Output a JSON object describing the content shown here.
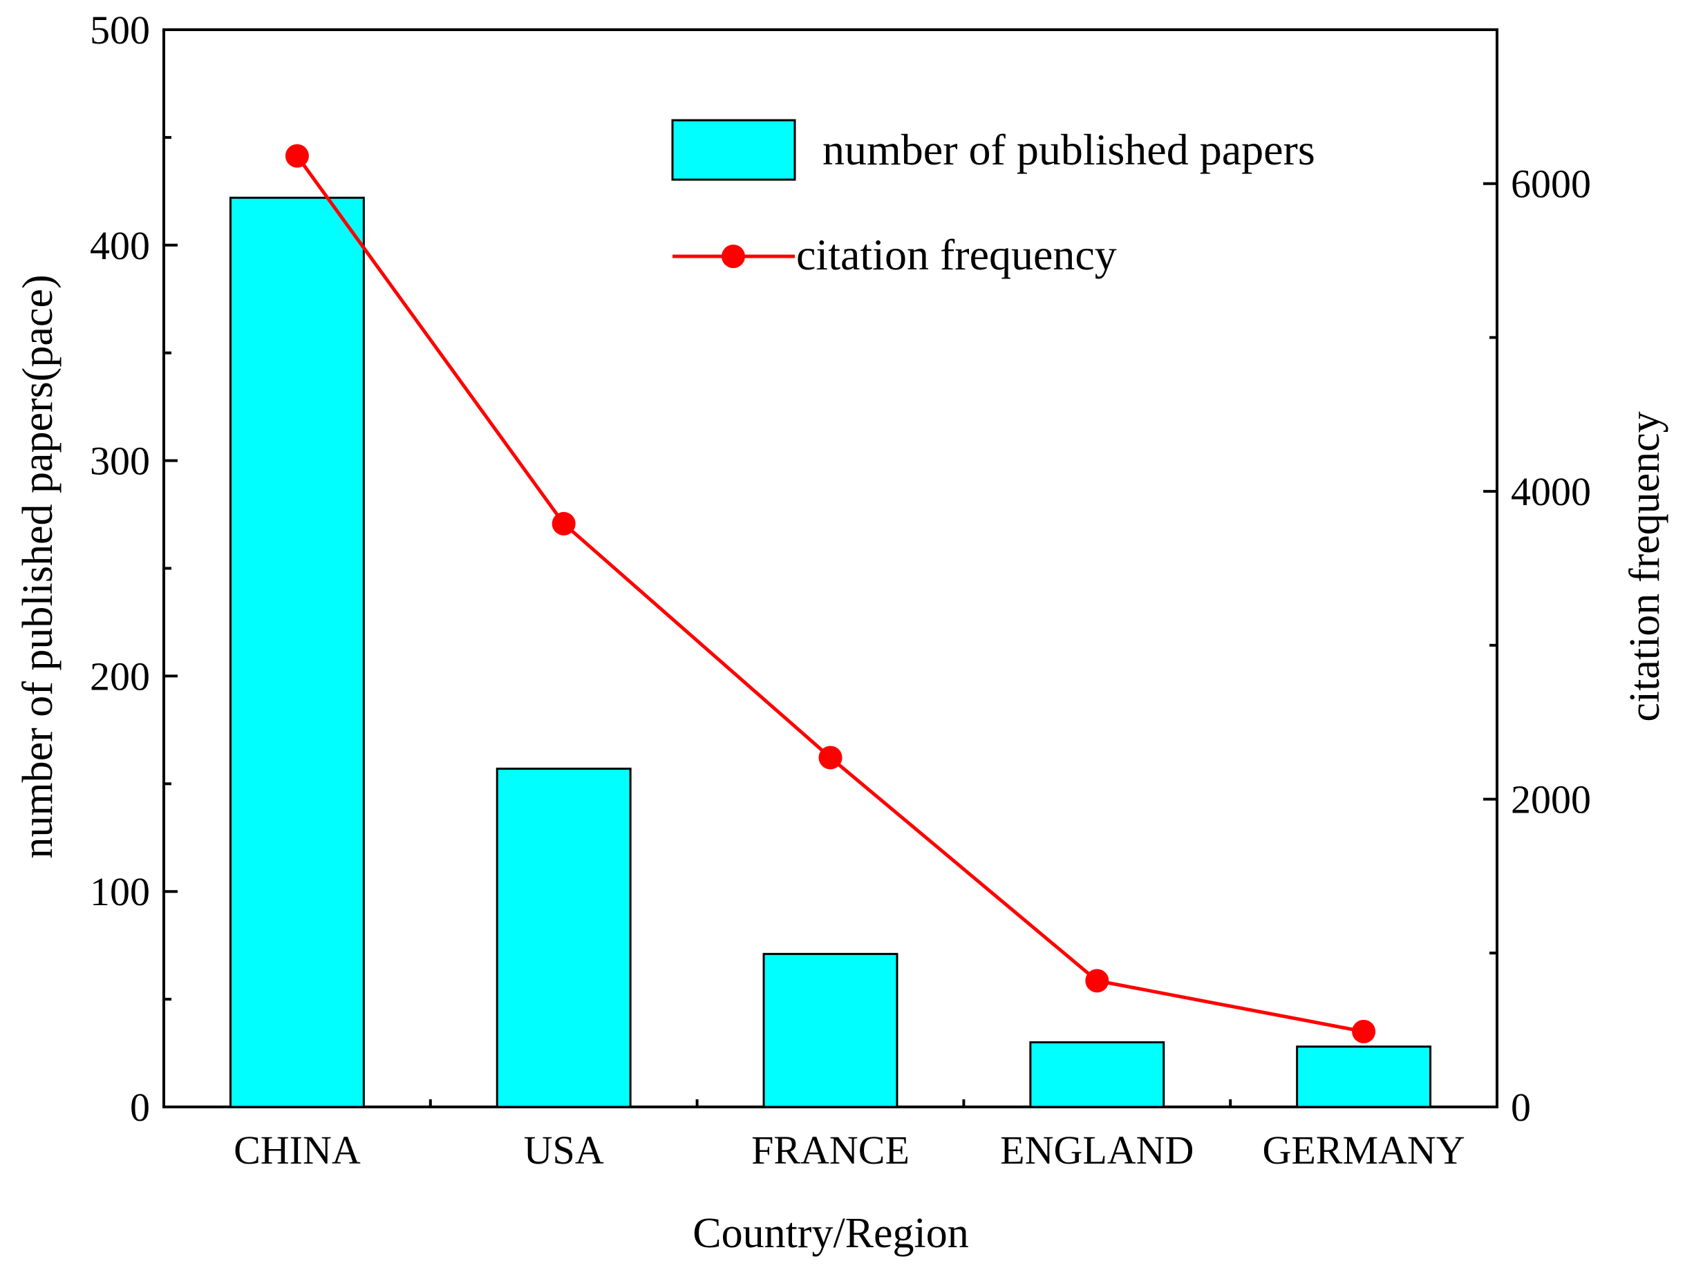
{
  "chart_data": {
    "type": "bar",
    "categories": [
      "CHINA",
      "USA",
      "FRANCE",
      "ENGLAND",
      "GERMANY"
    ],
    "series": [
      {
        "name": "number of published papers",
        "type": "bar",
        "axis": "left",
        "color": "#00FFFF",
        "values": [
          422,
          157,
          71,
          30,
          28
        ]
      },
      {
        "name": "citation frequency",
        "type": "line",
        "axis": "right",
        "color": "#FF0000",
        "values": [
          6180,
          3790,
          2270,
          820,
          490
        ]
      }
    ],
    "xlabel": "Country/Region",
    "ylabel": "number of published papers(pace)",
    "y2label": "citation frequency",
    "ylim": [
      0,
      500
    ],
    "y2lim": [
      0,
      7000
    ],
    "yticks": [
      0,
      100,
      200,
      300,
      400,
      500
    ],
    "y2ticks": [
      0,
      2000,
      4000,
      6000
    ],
    "grid": false,
    "legend_position": "top-right"
  }
}
